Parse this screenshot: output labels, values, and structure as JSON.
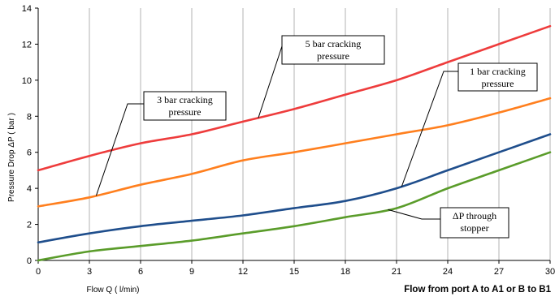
{
  "chart_data": {
    "type": "line",
    "xlabel": "Flow Q ( l/min)",
    "xlabel_right": "Flow from port A to A1 or B to B1",
    "ylabel": "Pressure Drop ΔP ( bar )",
    "xlim": [
      0,
      30
    ],
    "ylim": [
      0,
      14
    ],
    "xticks": [
      0,
      3,
      6,
      9,
      12,
      15,
      18,
      21,
      24,
      27,
      30
    ],
    "yticks": [
      0,
      2,
      4,
      6,
      8,
      10,
      12,
      14
    ],
    "grid": "vertical",
    "series": [
      {
        "name": "5 bar cracking pressure",
        "color": "#ee3c3c",
        "x": [
          0,
          3,
          6,
          9,
          12,
          15,
          18,
          21,
          24,
          27,
          30
        ],
        "y": [
          5.0,
          5.8,
          6.5,
          7.0,
          7.7,
          8.4,
          9.2,
          10.0,
          11.0,
          12.0,
          13.0
        ]
      },
      {
        "name": "3 bar cracking pressure",
        "color": "#ff7f1e",
        "x": [
          0,
          3,
          6,
          9,
          12,
          15,
          18,
          21,
          24,
          27,
          30
        ],
        "y": [
          3.0,
          3.5,
          4.2,
          4.8,
          5.55,
          6.0,
          6.5,
          7.0,
          7.5,
          8.2,
          9.0
        ]
      },
      {
        "name": "1 bar cracking pressure",
        "color": "#1f4e8c",
        "x": [
          0,
          3,
          6,
          9,
          12,
          15,
          18,
          21,
          24,
          27,
          30
        ],
        "y": [
          1.0,
          1.5,
          1.9,
          2.2,
          2.5,
          2.9,
          3.3,
          4.0,
          5.0,
          6.0,
          7.0
        ]
      },
      {
        "name": "ΔP through stopper",
        "color": "#5a9c2a",
        "x": [
          0,
          3,
          6,
          9,
          12,
          15,
          18,
          21,
          24,
          27,
          30
        ],
        "y": [
          0.0,
          0.5,
          0.8,
          1.1,
          1.5,
          1.9,
          2.4,
          2.9,
          4.0,
          5.0,
          6.0
        ]
      }
    ],
    "annotations": [
      {
        "lines": [
          "5 bar cracking",
          "pressure"
        ],
        "series": 0,
        "point_x": 12.9
      },
      {
        "lines": [
          "3 bar cracking",
          "pressure"
        ],
        "series": 1,
        "point_x": 3.4
      },
      {
        "lines": [
          "1 bar cracking",
          "pressure"
        ],
        "series": 2,
        "point_x": 21.3
      },
      {
        "lines": [
          "ΔP through",
          "stopper"
        ],
        "series": 3,
        "point_x": 20.5
      }
    ]
  }
}
